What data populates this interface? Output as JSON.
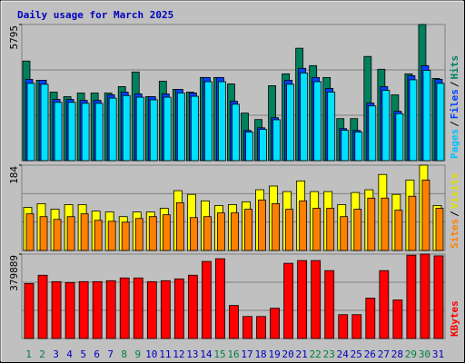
{
  "chart_data": [
    {
      "type": "bar",
      "title": "Daily usage for March 2025",
      "categories": [
        "1",
        "2",
        "3",
        "4",
        "5",
        "6",
        "7",
        "8",
        "9",
        "10",
        "11",
        "12",
        "13",
        "14",
        "15",
        "16",
        "17",
        "18",
        "19",
        "20",
        "21",
        "22",
        "23",
        "24",
        "25",
        "26",
        "27",
        "28",
        "29",
        "30",
        "31"
      ],
      "category_colors": [
        "#008040",
        "#008040",
        "#0000c0",
        "#0000c0",
        "#0000c0",
        "#0000c0",
        "#0000c0",
        "#008040",
        "#008040",
        "#0000c0",
        "#0000c0",
        "#0000c0",
        "#0000c0",
        "#0000c0",
        "#008040",
        "#008040",
        "#0000c0",
        "#0000c0",
        "#0000c0",
        "#0000c0",
        "#0000c0",
        "#008040",
        "#008040",
        "#0000c0",
        "#0000c0",
        "#0000c0",
        "#0000c0",
        "#0000c0",
        "#008040",
        "#008040",
        "#0000c0"
      ],
      "legend_separator": "/",
      "ylim": [
        0,
        5795
      ],
      "yticks": [
        5795
      ],
      "series": [
        {
          "name": "Hits",
          "color": "#00805c",
          "values": [
            4240,
            3423,
            2917,
            2723,
            2878,
            2878,
            2878,
            3151,
            3773,
            2723,
            3384,
            3034,
            2917,
            3540,
            3540,
            3268,
            2023,
            1750,
            3190,
            3695,
            4785,
            4045,
            3540,
            1789,
            1789,
            4434,
            3890,
            2800,
            3695,
            5795,
            3501
          ]
        },
        {
          "name": "Files",
          "color": "#0040ff",
          "values": [
            3462,
            3423,
            2606,
            2606,
            2567,
            2567,
            2801,
            2918,
            2840,
            2723,
            2840,
            3034,
            2879,
            3540,
            3540,
            2529,
            1284,
            1400,
            1828,
            3423,
            3929,
            3540,
            3073,
            1362,
            1284,
            2451,
            3151,
            2101,
            3618,
            4046,
            3462
          ]
        },
        {
          "name": "Pages",
          "color": "#00e0ff",
          "values": [
            3290,
            3250,
            2480,
            2480,
            2440,
            2440,
            2660,
            2770,
            2700,
            2590,
            2700,
            2880,
            2740,
            3360,
            3360,
            2400,
            1220,
            1330,
            1740,
            3250,
            3730,
            3360,
            2920,
            1290,
            1220,
            2330,
            2990,
            2000,
            3440,
            3840,
            3290
          ]
        }
      ]
    },
    {
      "type": "bar",
      "ylim": [
        0,
        184
      ],
      "yticks": [
        184
      ],
      "series": [
        {
          "name": "Visits",
          "color": "#ffff00",
          "values": [
            93,
            101,
            89,
            99,
            99,
            85,
            83,
            73,
            83,
            83,
            91,
            129,
            121,
            107,
            97,
            99,
            105,
            131,
            139,
            127,
            150,
            127,
            127,
            99,
            125,
            131,
            164,
            121,
            152,
            184,
            97
          ]
        },
        {
          "name": "Sites",
          "color": "#ff8000",
          "values": [
            79,
            73,
            67,
            73,
            79,
            65,
            63,
            61,
            69,
            73,
            77,
            103,
            71,
            73,
            81,
            81,
            89,
            109,
            101,
            89,
            107,
            91,
            91,
            73,
            89,
            113,
            113,
            87,
            117,
            152,
            91
          ]
        }
      ]
    },
    {
      "type": "bar",
      "ylim": [
        0,
        379889
      ],
      "yticks": [
        379889
      ],
      "series": [
        {
          "name": "KBytes",
          "color": "#ff0000",
          "values": [
            247740,
            284901,
            255998,
            251869,
            255998,
            255998,
            260127,
            272514,
            272514,
            255998,
            260127,
            268385,
            284901,
            346836,
            359223,
            148644,
            99096,
            99096,
            136257,
            338578,
            350965,
            350965,
            305546,
            107354,
            107354,
            181676,
            305546,
            173418,
            375000,
            379889,
            372000
          ]
        }
      ]
    }
  ]
}
